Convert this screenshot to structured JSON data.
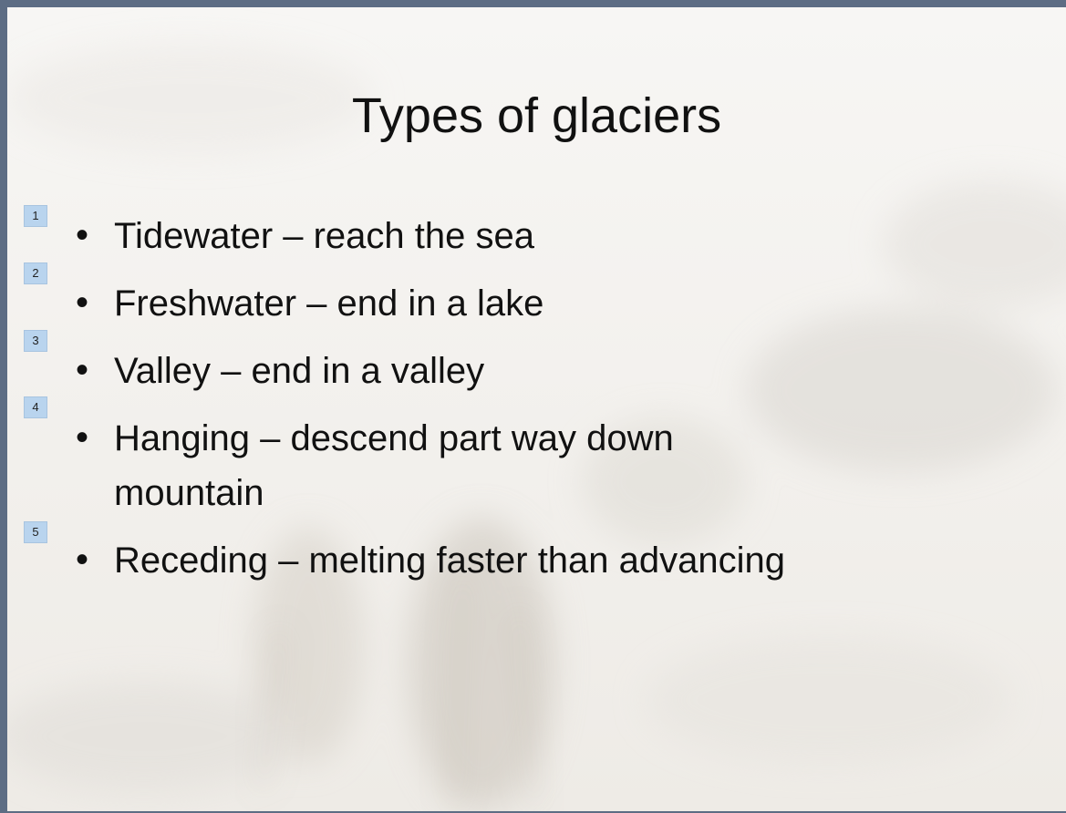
{
  "slide": {
    "title": "Types of glaciers",
    "bullets": [
      {
        "marker": 1,
        "lines": [
          "Tidewater – reach the sea"
        ]
      },
      {
        "marker": 2,
        "lines": [
          "Freshwater – end in a lake"
        ]
      },
      {
        "marker": 3,
        "lines": [
          "Valley – end in a valley"
        ]
      },
      {
        "marker": 4,
        "lines": [
          "Hanging – descend part way down",
          "mountain"
        ]
      },
      {
        "marker": 5,
        "lines": [
          "Receding – melting faster than advancing"
        ]
      }
    ]
  }
}
